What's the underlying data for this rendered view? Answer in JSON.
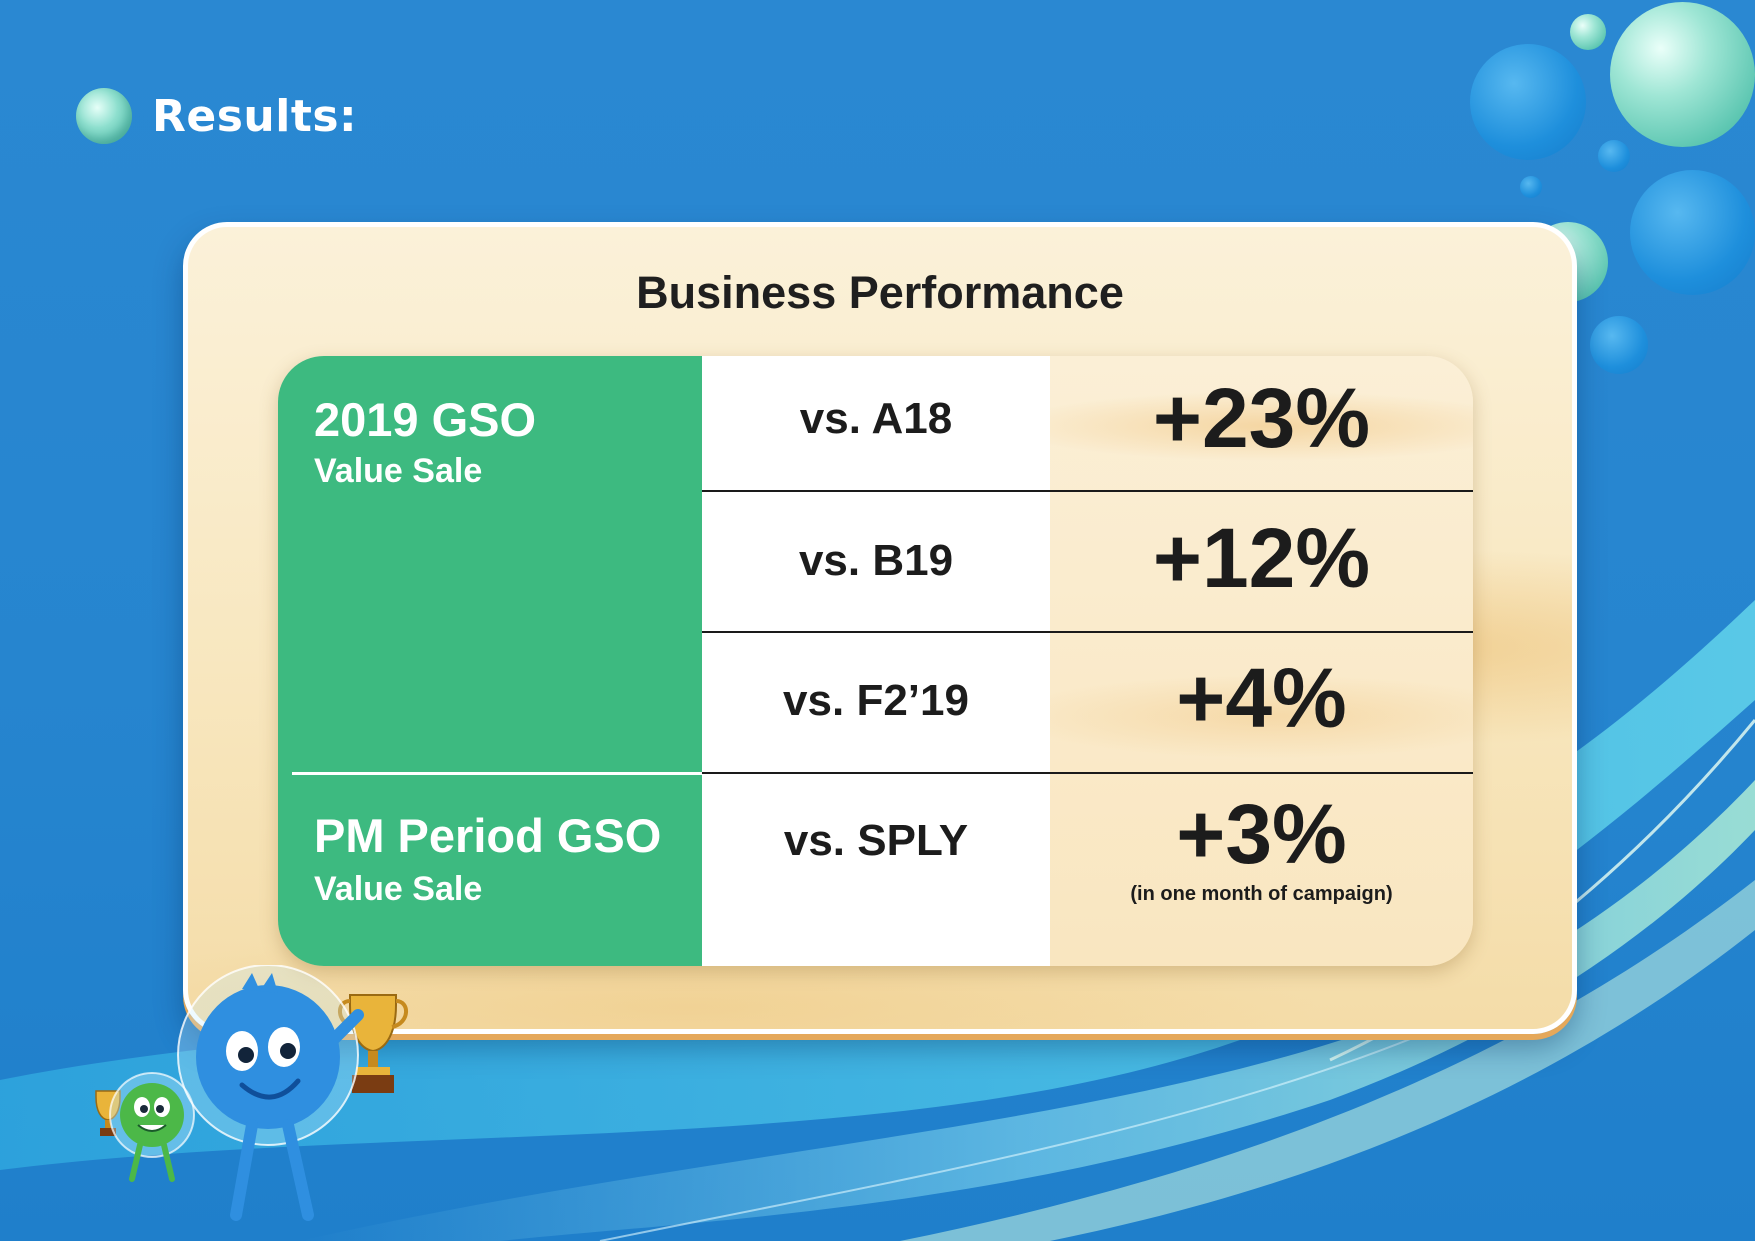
{
  "heading": {
    "text": "Results:"
  },
  "board": {
    "title": "Business Performance",
    "groups": [
      {
        "title": "2019 GSO",
        "subtitle": "Value Sale"
      },
      {
        "title": "PM Period GSO",
        "subtitle": "Value Sale"
      }
    ],
    "rows": [
      {
        "comparison": "vs. A18",
        "value": "+23%"
      },
      {
        "comparison": "vs. B19",
        "value": "+12%"
      },
      {
        "comparison": "vs. F2’19",
        "value": "+4%"
      },
      {
        "comparison": "vs. SPLY",
        "value": "+3%",
        "note": "(in one month of campaign)"
      }
    ]
  },
  "colors": {
    "background": "#2685cf",
    "green": "#3dba80",
    "board": "#f8e7bf",
    "text": "#1c1c1c"
  }
}
